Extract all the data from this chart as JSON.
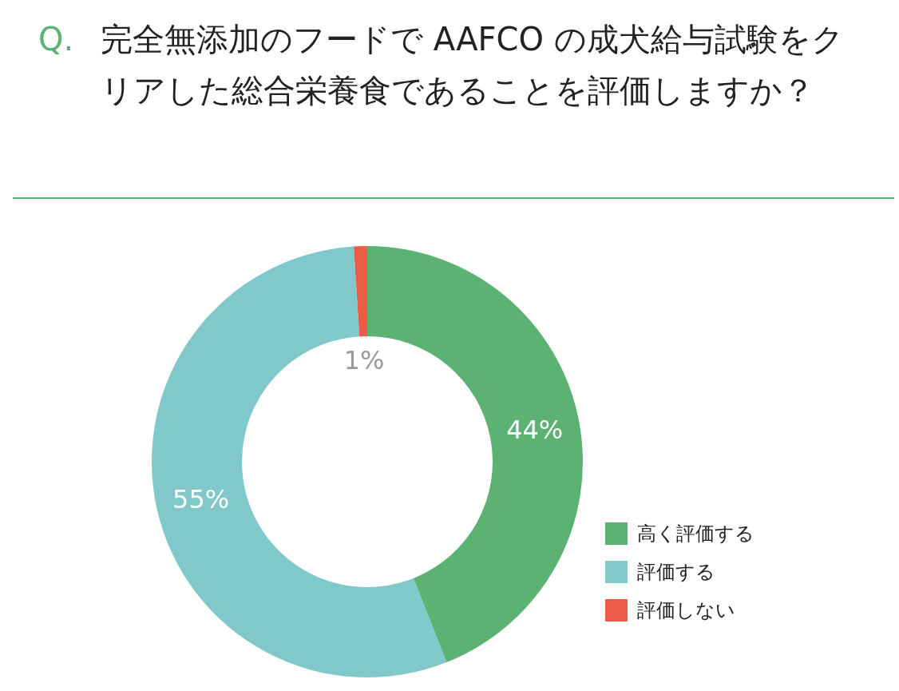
{
  "chart_data": {
    "type": "donut",
    "title": "Q. 完全無添加のフードで AAFCO の成犬給与試験をクリアした総合栄養食であることを評価しますか？",
    "categories": [
      "高く評価する",
      "評価する",
      "評価しない"
    ],
    "values": [
      44,
      55,
      1
    ],
    "colors": [
      "#5bb273",
      "#80c8c9",
      "#eb5b45"
    ],
    "value_labels": [
      "44%",
      "55%",
      "1%"
    ],
    "legend": "bottom right"
  }
}
